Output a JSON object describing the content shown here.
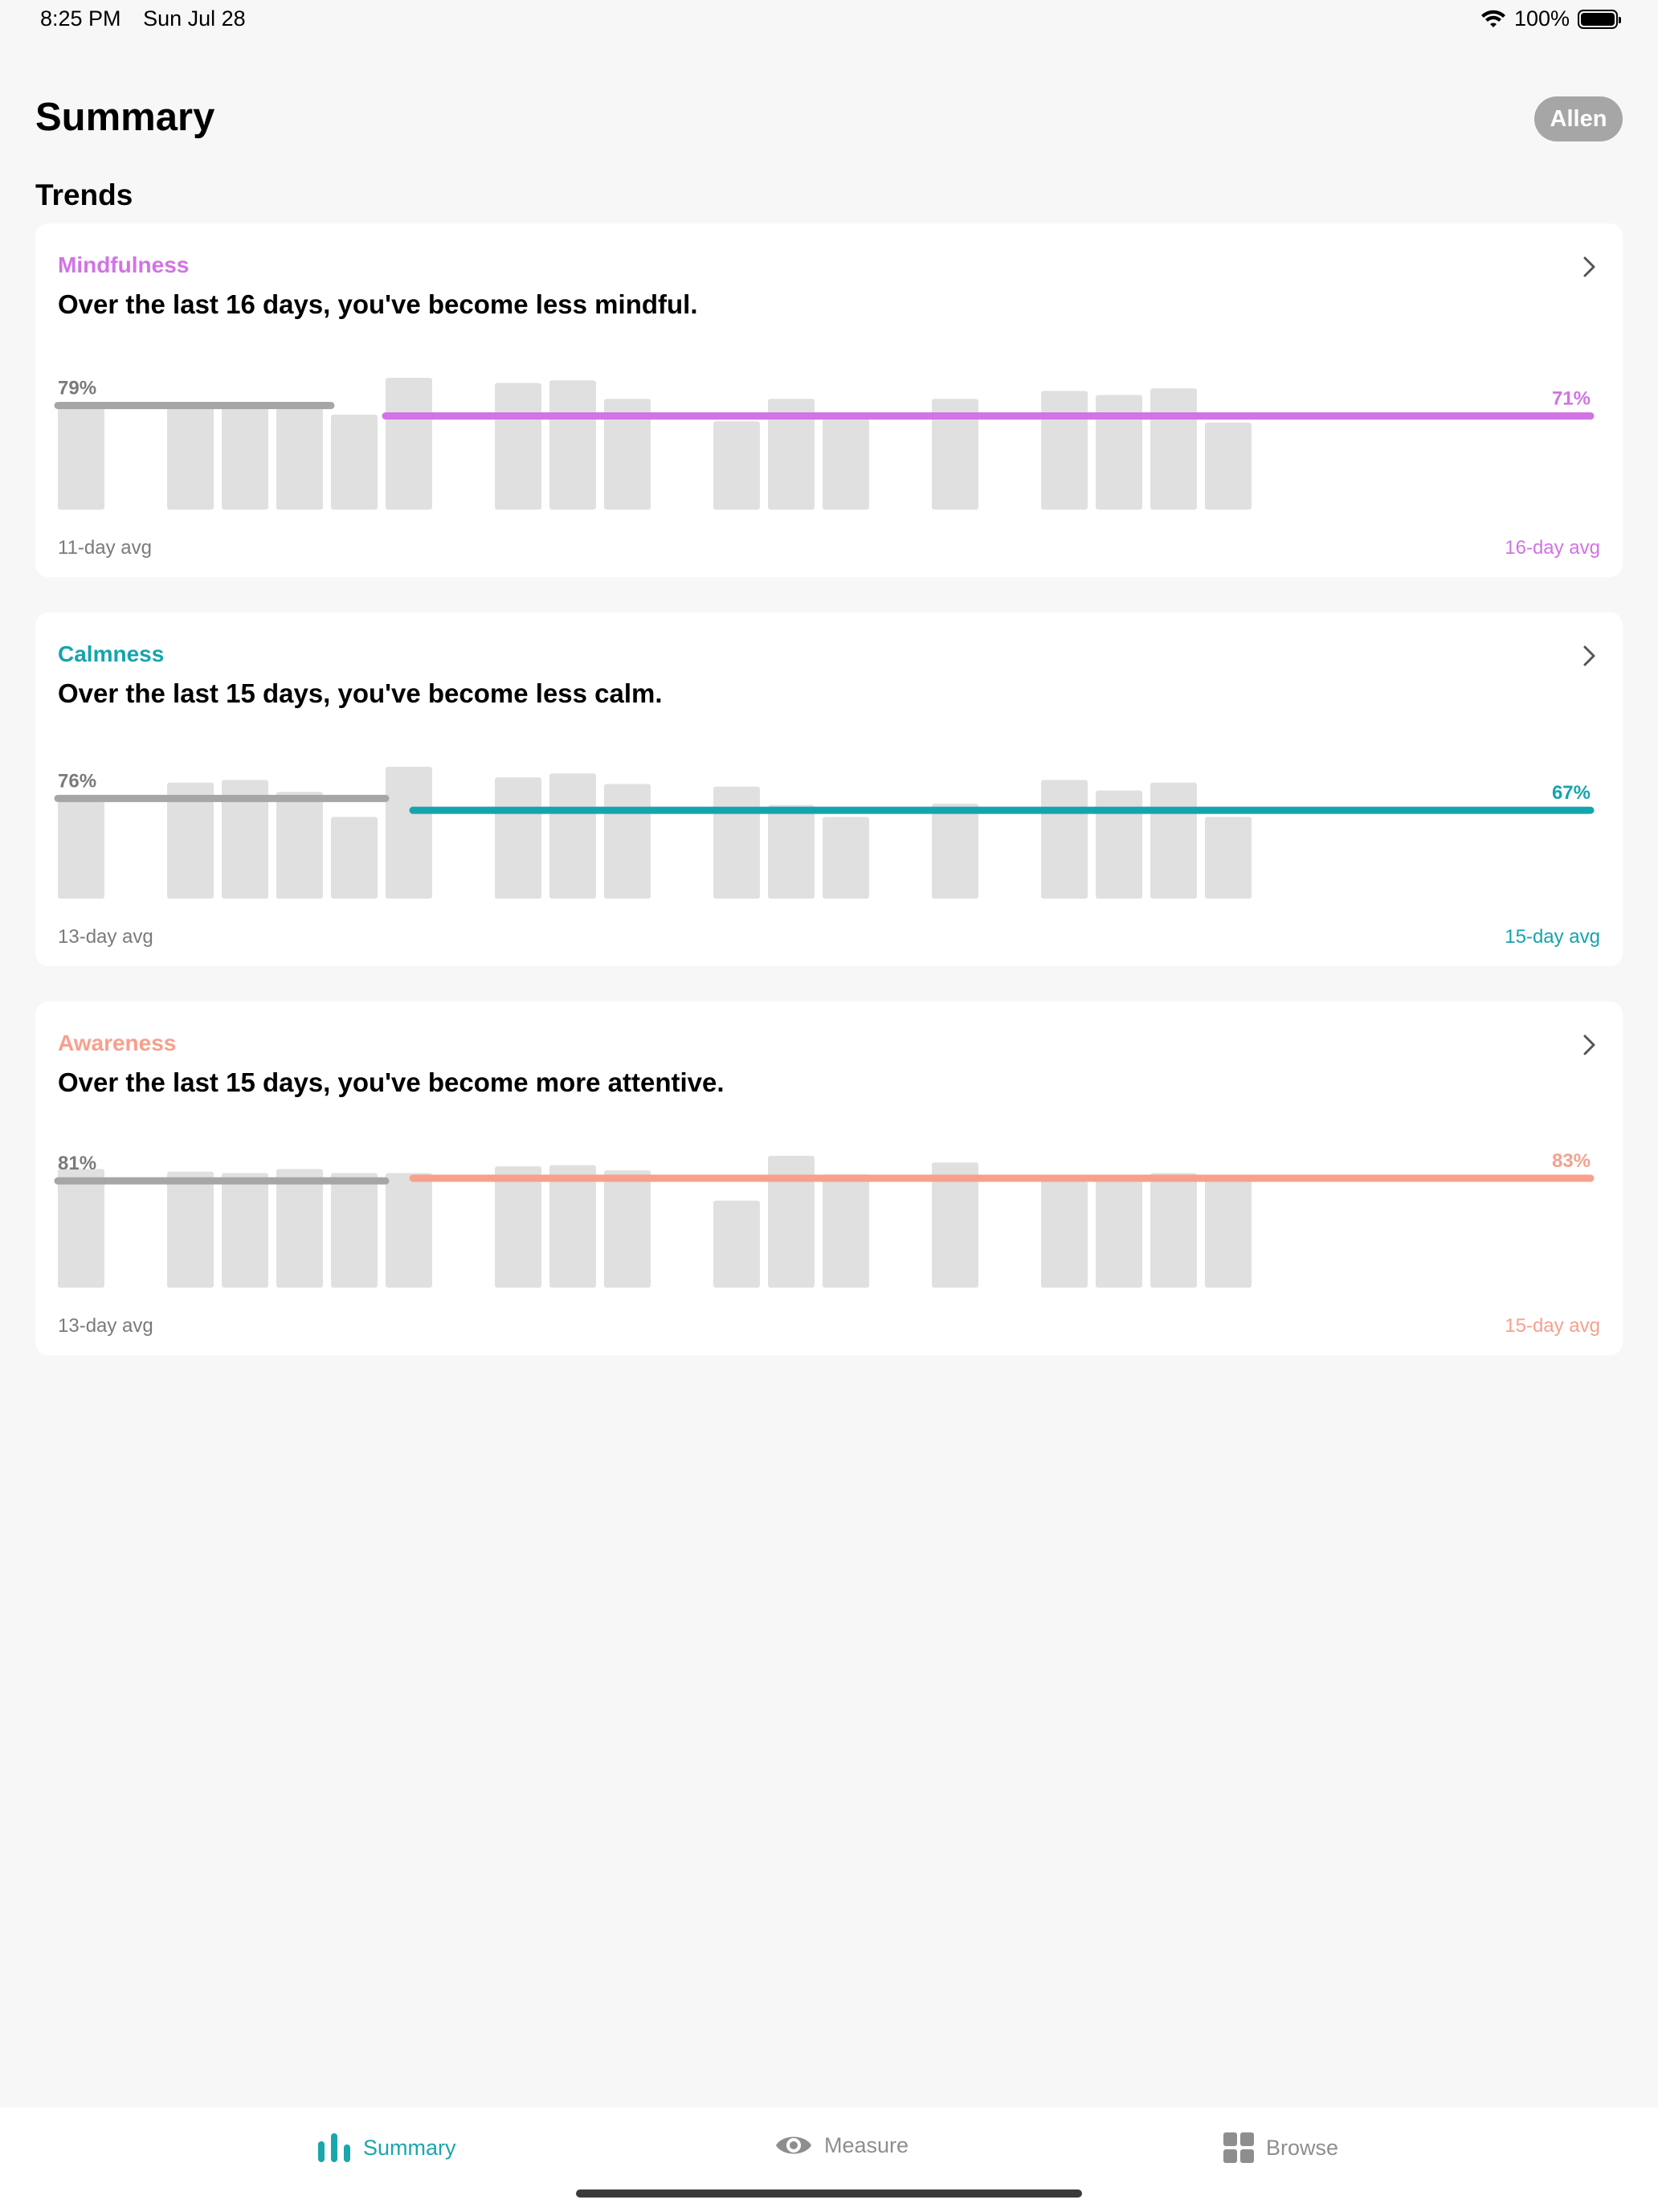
{
  "status_bar": {
    "time": "8:25 PM",
    "date": "Sun Jul 28",
    "battery": "100%",
    "wifi_icon": "wifi-icon",
    "battery_icon": "battery-icon"
  },
  "header": {
    "title": "Summary",
    "user": "Allen"
  },
  "section_title": "Trends",
  "colors": {
    "mindfulness": "#d273e6",
    "calmness": "#15a4ad",
    "awareness": "#f7a08e",
    "baseline": "#a6a6a6",
    "bar": "#e0e0e0"
  },
  "cards": [
    {
      "label": "Mindfulness",
      "summary": "Over the last 16 days, you've become less mindful.",
      "left_avg_value": "79%",
      "right_avg_value": "71%",
      "left_avg_label": "11-day avg",
      "right_avg_label": "16-day avg"
    },
    {
      "label": "Calmness",
      "summary": "Over the last 15 days, you've become less calm.",
      "left_avg_value": "76%",
      "right_avg_value": "67%",
      "left_avg_label": "13-day avg",
      "right_avg_label": "15-day avg"
    },
    {
      "label": "Awareness",
      "summary": "Over the last 15 days, you've become more attentive.",
      "left_avg_value": "81%",
      "right_avg_value": "83%",
      "left_avg_label": "13-day avg",
      "right_avg_label": "15-day avg"
    }
  ],
  "chart_data": [
    {
      "type": "bar",
      "series": "Mindfulness",
      "ylim": [
        0,
        100
      ],
      "values": [
        80,
        null,
        81,
        81,
        81,
        72,
        100,
        null,
        96,
        98,
        84,
        null,
        67,
        84,
        69,
        null,
        84,
        null,
        90,
        87,
        92,
        66
      ],
      "left_avg": {
        "value": 79,
        "start": 0,
        "end": 10
      },
      "right_avg": {
        "value": 71,
        "start": 12,
        "end": 27
      }
    },
    {
      "type": "bar",
      "series": "Calmness",
      "ylim": [
        0,
        100
      ],
      "values": [
        75,
        null,
        88,
        90,
        81,
        62,
        100,
        null,
        92,
        95,
        87,
        null,
        85,
        71,
        62,
        null,
        72,
        null,
        90,
        82,
        88,
        62
      ],
      "left_avg": {
        "value": 76,
        "start": 0,
        "end": 12
      },
      "right_avg": {
        "value": 67,
        "start": 13,
        "end": 27
      }
    },
    {
      "type": "bar",
      "series": "Awareness",
      "ylim": [
        0,
        100
      ],
      "values": [
        90,
        null,
        88,
        87,
        90,
        87,
        87,
        null,
        92,
        93,
        89,
        null,
        66,
        100,
        86,
        null,
        95,
        null,
        84,
        83,
        87,
        83
      ],
      "left_avg": {
        "value": 81,
        "start": 0,
        "end": 12
      },
      "right_avg": {
        "value": 83,
        "start": 13,
        "end": 27
      }
    }
  ],
  "tabs": [
    {
      "label": "Summary",
      "icon": "bar-chart-icon",
      "active": true
    },
    {
      "label": "Measure",
      "icon": "eye-icon",
      "active": false
    },
    {
      "label": "Browse",
      "icon": "grid-icon",
      "active": false
    }
  ]
}
